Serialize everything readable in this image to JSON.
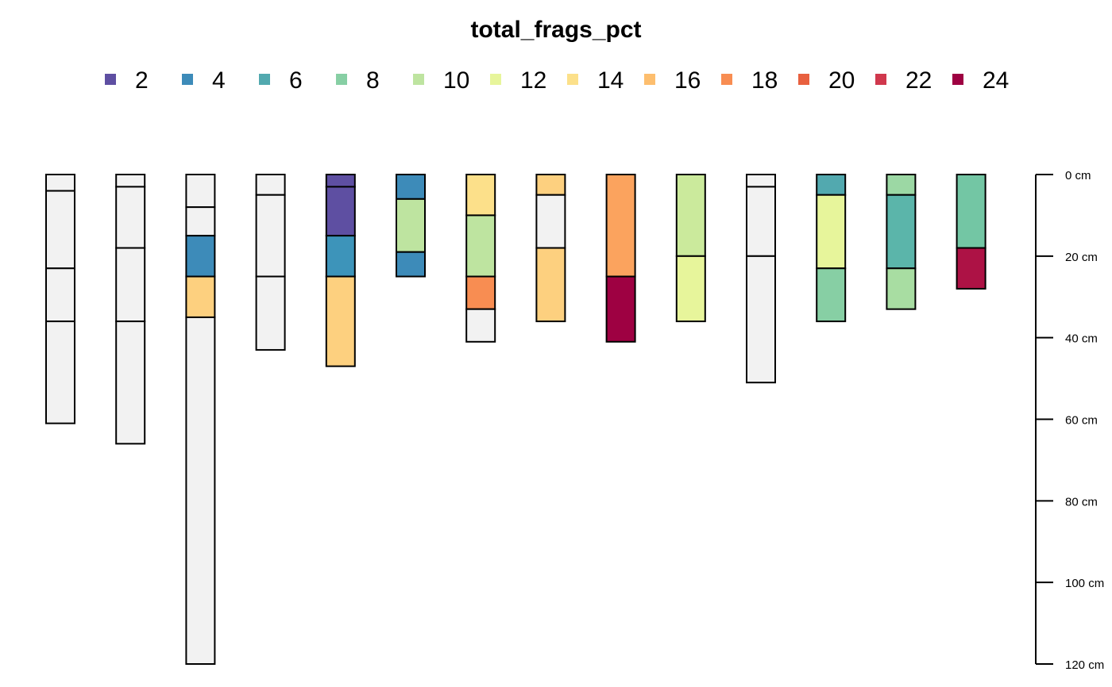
{
  "chart_data": {
    "type": "soil-profile",
    "title": "total_frags_pct",
    "legend": {
      "placement": "top",
      "entries": [
        {
          "label": "2",
          "color": "#5E4FA2"
        },
        {
          "label": "4",
          "color": "#3D8BB9"
        },
        {
          "label": "6",
          "color": "#52A9AF"
        },
        {
          "label": "8",
          "color": "#87CFA4"
        },
        {
          "label": "10",
          "color": "#BEE4A0"
        },
        {
          "label": "12",
          "color": "#E7F59B"
        },
        {
          "label": "14",
          "color": "#FCE08A"
        },
        {
          "label": "16",
          "color": "#FDBE6E"
        },
        {
          "label": "18",
          "color": "#F88D52"
        },
        {
          "label": "20",
          "color": "#E8603F"
        },
        {
          "label": "22",
          "color": "#D0384D"
        },
        {
          "label": "24",
          "color": "#9E0142"
        }
      ]
    },
    "missing_color": "#F2F2F2",
    "depth_axis": {
      "unit": "cm",
      "range": [
        0,
        120
      ],
      "ticks": [
        0,
        20,
        40,
        60,
        80,
        100,
        120
      ],
      "tick_labels": [
        "0 cm",
        "20 cm",
        "40 cm",
        "60 cm",
        "80 cm",
        "100 cm",
        "120 cm"
      ]
    },
    "profiles": [
      {
        "horizons": [
          {
            "top": 0,
            "bottom": 4,
            "color": "#F2F2F2"
          },
          {
            "top": 4,
            "bottom": 23,
            "color": "#F2F2F2"
          },
          {
            "top": 23,
            "bottom": 36,
            "color": "#F2F2F2"
          },
          {
            "top": 36,
            "bottom": 61,
            "color": "#F2F2F2"
          }
        ]
      },
      {
        "horizons": [
          {
            "top": 0,
            "bottom": 3,
            "color": "#F2F2F2"
          },
          {
            "top": 3,
            "bottom": 18,
            "color": "#F2F2F2"
          },
          {
            "top": 18,
            "bottom": 36,
            "color": "#F2F2F2"
          },
          {
            "top": 36,
            "bottom": 66,
            "color": "#F2F2F2"
          }
        ]
      },
      {
        "horizons": [
          {
            "top": 0,
            "bottom": 8,
            "color": "#F2F2F2"
          },
          {
            "top": 8,
            "bottom": 15,
            "color": "#F2F2F2"
          },
          {
            "top": 15,
            "bottom": 25,
            "color": "#3D8BB9"
          },
          {
            "top": 25,
            "bottom": 35,
            "color": "#FDD07F"
          },
          {
            "top": 35,
            "bottom": 120,
            "color": "#F2F2F2"
          }
        ]
      },
      {
        "horizons": [
          {
            "top": 0,
            "bottom": 5,
            "color": "#F2F2F2"
          },
          {
            "top": 5,
            "bottom": 25,
            "color": "#F2F2F2"
          },
          {
            "top": 25,
            "bottom": 43,
            "color": "#F2F2F2"
          }
        ]
      },
      {
        "horizons": [
          {
            "top": 0,
            "bottom": 3,
            "color": "#5E4FA2"
          },
          {
            "top": 3,
            "bottom": 15,
            "color": "#5E4FA2"
          },
          {
            "top": 15,
            "bottom": 25,
            "color": "#3D94BA"
          },
          {
            "top": 25,
            "bottom": 47,
            "color": "#FDD07F"
          }
        ]
      },
      {
        "horizons": [
          {
            "top": 0,
            "bottom": 6,
            "color": "#3D8BB9"
          },
          {
            "top": 6,
            "bottom": 19,
            "color": "#BEE4A0"
          },
          {
            "top": 19,
            "bottom": 25,
            "color": "#3D8BB9"
          }
        ]
      },
      {
        "horizons": [
          {
            "top": 0,
            "bottom": 10,
            "color": "#FCE08A"
          },
          {
            "top": 10,
            "bottom": 25,
            "color": "#BEE4A0"
          },
          {
            "top": 25,
            "bottom": 33,
            "color": "#F88D52"
          },
          {
            "top": 33,
            "bottom": 41,
            "color": "#F2F2F2"
          }
        ]
      },
      {
        "horizons": [
          {
            "top": 0,
            "bottom": 5,
            "color": "#FDD07F"
          },
          {
            "top": 5,
            "bottom": 18,
            "color": "#F2F2F2"
          },
          {
            "top": 18,
            "bottom": 36,
            "color": "#FDD07F"
          }
        ]
      },
      {
        "horizons": [
          {
            "top": 0,
            "bottom": 25,
            "color": "#FBA35E"
          },
          {
            "top": 25,
            "bottom": 41,
            "color": "#9E0142"
          }
        ]
      },
      {
        "horizons": [
          {
            "top": 0,
            "bottom": 20,
            "color": "#CBEA9C"
          },
          {
            "top": 20,
            "bottom": 36,
            "color": "#E7F59B"
          }
        ]
      },
      {
        "horizons": [
          {
            "top": 0,
            "bottom": 3,
            "color": "#F2F2F2"
          },
          {
            "top": 3,
            "bottom": 20,
            "color": "#F2F2F2"
          },
          {
            "top": 20,
            "bottom": 51,
            "color": "#F2F2F2"
          }
        ]
      },
      {
        "horizons": [
          {
            "top": 0,
            "bottom": 5,
            "color": "#52A9AF"
          },
          {
            "top": 5,
            "bottom": 23,
            "color": "#E7F59B"
          },
          {
            "top": 23,
            "bottom": 36,
            "color": "#87CFA4"
          }
        ]
      },
      {
        "horizons": [
          {
            "top": 0,
            "bottom": 5,
            "color": "#9CD8A4"
          },
          {
            "top": 5,
            "bottom": 23,
            "color": "#5BB5AA"
          },
          {
            "top": 23,
            "bottom": 33,
            "color": "#A8DDA2"
          }
        ]
      },
      {
        "horizons": [
          {
            "top": 0,
            "bottom": 18,
            "color": "#73C6A4"
          },
          {
            "top": 18,
            "bottom": 28,
            "color": "#AD1245"
          }
        ]
      }
    ]
  }
}
